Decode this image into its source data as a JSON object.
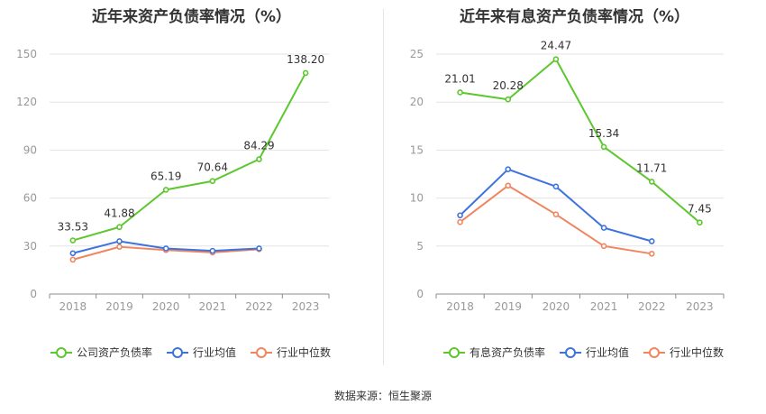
{
  "source": "数据来源：恒生聚源",
  "colors": {
    "green": "#5cc72f",
    "blue": "#3d73dd",
    "orange": "#f18560",
    "grid": "#e3e3e3",
    "axis": "#8c8c8c",
    "text": "#999999"
  },
  "chart_data": [
    {
      "type": "line",
      "title": "近年来资产负债率情况（%）",
      "categories": [
        "2018",
        "2019",
        "2020",
        "2021",
        "2022",
        "2023"
      ],
      "ylim": [
        0,
        150
      ],
      "yticks": [
        "0",
        "30",
        "60",
        "90",
        "120",
        "150"
      ],
      "grid": true,
      "legend_position": "bottom",
      "series": [
        {
          "name": "公司资产负债率",
          "color": "#5cc72f",
          "values": [
            33.53,
            41.88,
            65.19,
            70.64,
            84.29,
            138.2
          ],
          "labels": [
            "33.53",
            "41.88",
            "65.19",
            "70.64",
            "84.29",
            "138.20"
          ]
        },
        {
          "name": "行业均值",
          "color": "#3d73dd",
          "values": [
            25.5,
            33.0,
            28.5,
            27.0,
            28.5,
            null
          ]
        },
        {
          "name": "行业中位数",
          "color": "#f18560",
          "values": [
            21.5,
            29.5,
            27.5,
            26.0,
            28.0,
            null
          ]
        }
      ]
    },
    {
      "type": "line",
      "title": "近年来有息资产负债率情况（%）",
      "categories": [
        "2018",
        "2019",
        "2020",
        "2021",
        "2022",
        "2023"
      ],
      "ylim": [
        0,
        25
      ],
      "yticks": [
        "0",
        "5",
        "10",
        "15",
        "20",
        "25"
      ],
      "grid": true,
      "legend_position": "bottom",
      "series": [
        {
          "name": "有息资产负债率",
          "color": "#5cc72f",
          "values": [
            21.01,
            20.28,
            24.47,
            15.34,
            11.71,
            7.45
          ],
          "labels": [
            "21.01",
            "20.28",
            "24.47",
            "15.34",
            "11.71",
            "7.45"
          ]
        },
        {
          "name": "行业均值",
          "color": "#3d73dd",
          "values": [
            8.2,
            13.0,
            11.2,
            6.9,
            5.5,
            null
          ]
        },
        {
          "name": "行业中位数",
          "color": "#f18560",
          "values": [
            7.5,
            11.3,
            8.3,
            5.0,
            4.2,
            null
          ]
        }
      ]
    }
  ]
}
